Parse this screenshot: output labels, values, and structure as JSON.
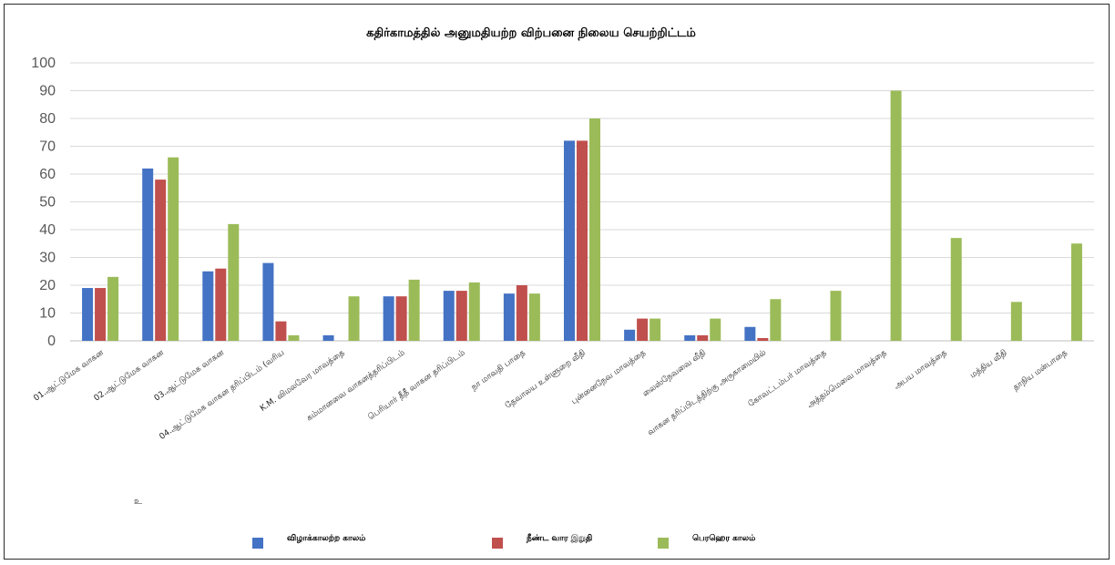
{
  "chart_data": {
    "type": "bar",
    "title": "கதிர்காமத்தில் அனுமதியற்ற விற்பனை நிலைய செயற்றிட்டம்",
    "xlabel": "",
    "ylabel": "",
    "ylim": [
      0,
      100
    ],
    "yticks": [
      0,
      10,
      20,
      30,
      40,
      50,
      60,
      70,
      80,
      90,
      100
    ],
    "grid": true,
    "legend_position": "bottom",
    "categories": [
      "01.ஆட்டுமேக வாகன",
      "02.ஆட்டுமேக வாகன",
      "03.ஆட்டுமேக வாகன",
      "04.ஆட்டுமேக வாகன தரிப்பிடம் (வரிய",
      "K.M. விமலவேர மாவத்தை",
      "கம்மானவை வாகனத்தரிப்பிடம்",
      "பெரியார் தீதீ வாகன தரிப்பிடம்",
      "நா மாவதி பாதை",
      "தேவாலய உள்ளுறை வீதி",
      "புன்னைநேவ மாவத்தை",
      "லைஸ்நேவவை வீதி",
      "வாகன தரிப்பிடத்திற்கு அருகாமையில்",
      "கோவட்டம்பர் மாவத்தை",
      "அத்தம்மெவை மாவத்தை",
      "அபய மாவத்தை",
      "மத்திய வீதி",
      "தாநிய மன்பாதை"
    ],
    "series": [
      {
        "name": "விழாக்காலற்ற காலம்",
        "color": "#4472c4",
        "values": [
          19,
          62,
          25,
          28,
          2,
          16,
          18,
          17,
          72,
          4,
          2,
          5,
          0,
          0,
          0,
          0,
          0
        ]
      },
      {
        "name": "நீண்ட வார இறுதி",
        "color": "#c0504d",
        "values": [
          19,
          58,
          26,
          7,
          0,
          16,
          18,
          20,
          72,
          8,
          2,
          1,
          0,
          0,
          0,
          0,
          0
        ]
      },
      {
        "name": "பெரஹெர காலம்",
        "color": "#9bbb59",
        "values": [
          23,
          66,
          42,
          2,
          16,
          22,
          21,
          17,
          80,
          8,
          8,
          15,
          18,
          90,
          37,
          14,
          35
        ]
      }
    ]
  },
  "colors": {
    "grid": "#d9d9d9",
    "axis": "#bfbfbf"
  },
  "stray_note": "உ"
}
